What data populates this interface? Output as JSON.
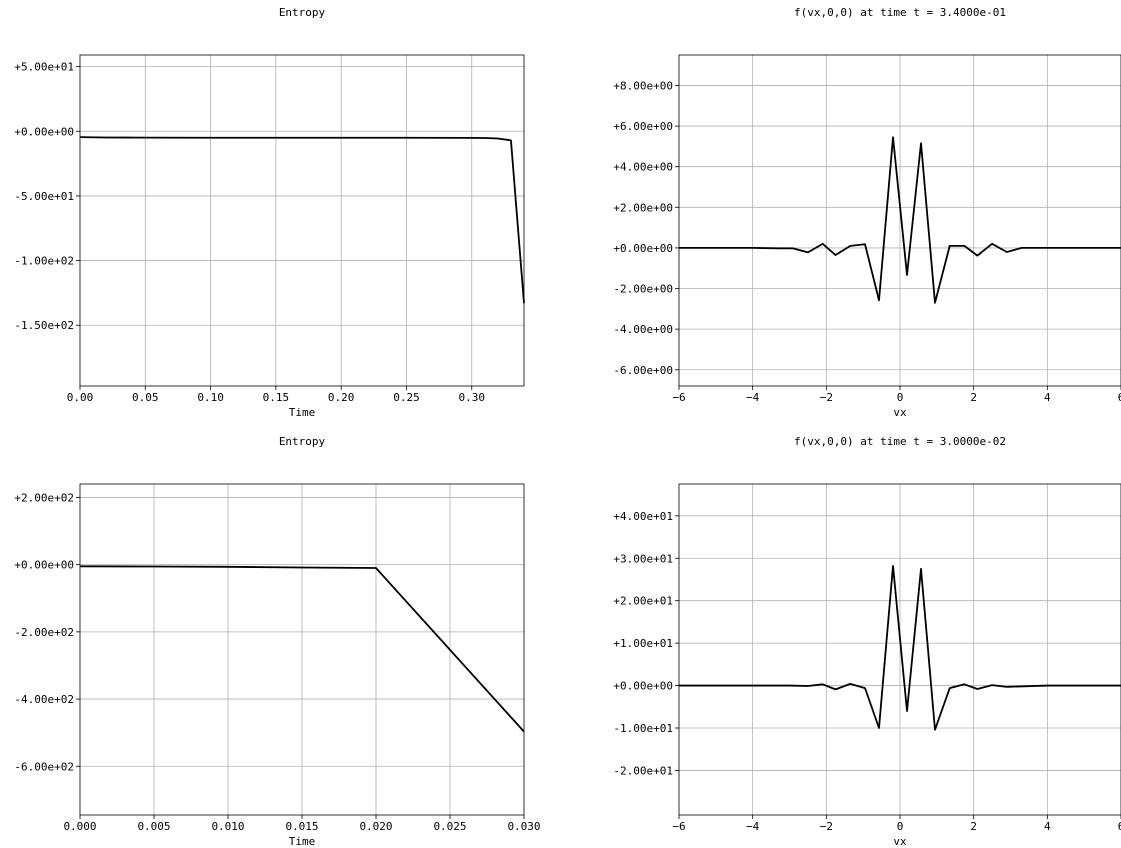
{
  "chart_data": [
    {
      "type": "line",
      "title": "Entropy",
      "xlabel": "Time",
      "ylabel": "",
      "xlim": [
        0,
        0.34
      ],
      "ylim": [
        -197,
        59
      ],
      "xticks": [
        0,
        0.05,
        0.1,
        0.15,
        0.2,
        0.25,
        0.3
      ],
      "xtick_labels": [
        "0.00",
        "0.05",
        "0.10",
        "0.15",
        "0.20",
        "0.25",
        "0.30"
      ],
      "yticks": [
        50,
        0,
        -50,
        -100,
        -150
      ],
      "ytick_labels": [
        "+5.00e+01",
        "+0.00e+00",
        "-5.00e+01",
        "-1.00e+02",
        "-1.50e+02"
      ],
      "grid": true,
      "x": [
        0,
        0.02,
        0.05,
        0.1,
        0.15,
        0.2,
        0.25,
        0.3,
        0.31,
        0.32,
        0.33,
        0.34
      ],
      "y": [
        -4.5,
        -4.8,
        -4.9,
        -5.0,
        -5.0,
        -5.0,
        -5.0,
        -5.1,
        -5.2,
        -5.6,
        -7.0,
        -133
      ]
    },
    {
      "type": "line",
      "title": "f(vx,0,0) at time t = 3.4000e-01",
      "xlabel": "vx",
      "ylabel": "",
      "xlim": [
        -6,
        6
      ],
      "ylim": [
        -6.8,
        9.5
      ],
      "xticks": [
        -6,
        -4,
        -2,
        0,
        2,
        4,
        6
      ],
      "xtick_labels": [
        "−6",
        "−4",
        "−2",
        "0",
        "2",
        "4",
        "6"
      ],
      "yticks": [
        8,
        6,
        4,
        2,
        0,
        -2,
        -4,
        -6
      ],
      "ytick_labels": [
        "+8.00e+00",
        "+6.00e+00",
        "+4.00e+00",
        "+2.00e+00",
        "+0.00e+00",
        "-2.00e+00",
        "-4.00e+00",
        "-6.00e+00"
      ],
      "grid": true,
      "x": [
        -6,
        -4,
        -3.3,
        -2.9,
        -2.5,
        -2.1,
        -1.75,
        -1.35,
        -0.95,
        -0.57,
        -0.19,
        0.19,
        0.57,
        0.95,
        1.35,
        1.75,
        2.1,
        2.5,
        2.9,
        3.3,
        4,
        6
      ],
      "y": [
        0,
        0,
        -0.02,
        -0.02,
        -0.22,
        0.2,
        -0.35,
        0.1,
        0.18,
        -2.58,
        5.45,
        -1.33,
        5.15,
        -2.7,
        0.1,
        0.1,
        -0.38,
        0.2,
        -0.2,
        0.0,
        0,
        0
      ]
    },
    {
      "type": "line",
      "title": "Entropy",
      "xlabel": "Time",
      "ylabel": "",
      "xlim": [
        0,
        0.03
      ],
      "ylim": [
        -745,
        240
      ],
      "xticks": [
        0,
        0.005,
        0.01,
        0.015,
        0.02,
        0.025,
        0.03
      ],
      "xtick_labels": [
        "0.000",
        "0.005",
        "0.010",
        "0.015",
        "0.020",
        "0.025",
        "0.030"
      ],
      "yticks": [
        200,
        0,
        -200,
        -400,
        -600
      ],
      "ytick_labels": [
        "+2.00e+02",
        "+0.00e+00",
        "-2.00e+02",
        "-4.00e+02",
        "-6.00e+02"
      ],
      "grid": true,
      "x": [
        0,
        0.005,
        0.01,
        0.015,
        0.02,
        0.03
      ],
      "y": [
        -5,
        -5.5,
        -6.5,
        -8.5,
        -10,
        -497
      ]
    },
    {
      "type": "line",
      "title": "f(vx,0,0) at time t = 3.0000e-02",
      "xlabel": "vx",
      "ylabel": "",
      "xlim": [
        -6,
        6
      ],
      "ylim": [
        -30.5,
        47.5
      ],
      "xticks": [
        -6,
        -4,
        -2,
        0,
        2,
        4,
        6
      ],
      "xtick_labels": [
        "−6",
        "−4",
        "−2",
        "0",
        "2",
        "4",
        "6"
      ],
      "yticks": [
        40,
        30,
        20,
        10,
        0,
        -10,
        -20
      ],
      "ytick_labels": [
        "+4.00e+01",
        "+3.00e+01",
        "+2.00e+01",
        "+1.00e+01",
        "+0.00e+00",
        "-1.00e+01",
        "-2.00e+01"
      ],
      "grid": true,
      "x": [
        -6,
        -4,
        -3,
        -2.5,
        -2.1,
        -1.75,
        -1.35,
        -0.95,
        -0.57,
        -0.19,
        0.19,
        0.57,
        0.95,
        1.35,
        1.75,
        2.1,
        2.5,
        2.9,
        4,
        6
      ],
      "y": [
        0,
        0,
        0,
        -0.1,
        0.3,
        -0.9,
        0.4,
        -0.6,
        -10,
        28.2,
        -6,
        27.5,
        -10.4,
        -0.6,
        0.3,
        -0.8,
        0.1,
        -0.3,
        0,
        0
      ]
    }
  ]
}
